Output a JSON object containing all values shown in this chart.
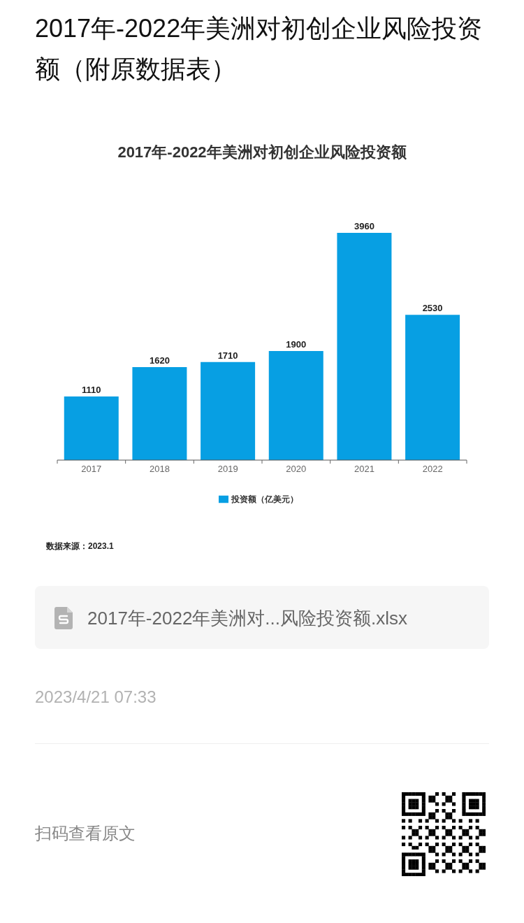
{
  "chart_data": {
    "type": "bar",
    "title": "2017年-2022年美洲对初创企业风险投资额（附原数据表）",
    "subtitle": "2017年-2022年美洲对初创企业风险投资额",
    "categories": [
      "2017",
      "2018",
      "2019",
      "2020",
      "2021",
      "2022"
    ],
    "series": [
      {
        "name": "投资额（亿美元）",
        "color": "#079fe3",
        "values": [
          1110,
          1620,
          1710,
          1900,
          3960,
          2530
        ]
      }
    ],
    "data_labels": true,
    "legend": "bottom",
    "tick_labels": "x",
    "annotations": [
      "数据来源：2023.1",
      "2017年-2022年美洲对...风险投资额.xlsx",
      "2023/4/21 07:33",
      "扫码查看原文"
    ]
  }
}
